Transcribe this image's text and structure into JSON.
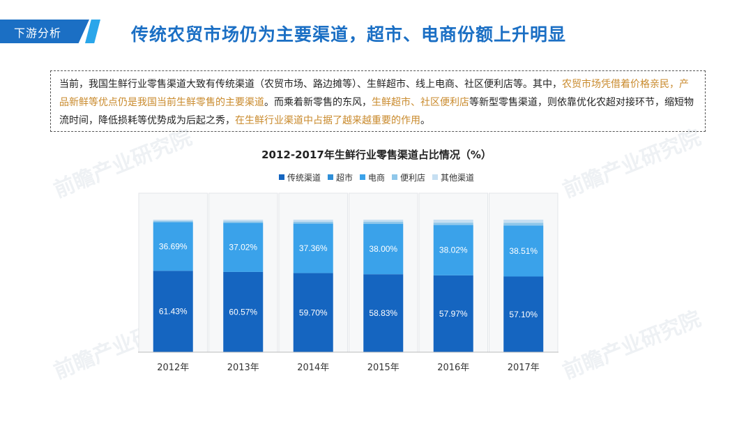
{
  "header": {
    "tag": "下游分析",
    "title": "传统农贸市场仍为主要渠道，超市、电商份额上升明显"
  },
  "description": {
    "p1": "当前，我国生鲜行业零售渠道大致有传统渠道（农贸市场、路边摊等）、生鲜超市、线上电商、社区便利店等。其中，",
    "h1": "农贸市场凭借着价格亲民，产品新鲜等优点仍是我国当前生鲜零售的主要渠道",
    "p2": "。而乘着新零售的东风，",
    "h2": "生鲜超市、社区便利店",
    "p3": "等新型零售渠道，则依靠优化农超对接环节，缩短物流时间，降低损耗等优势成为后起之秀，",
    "h3": "在生鲜行业渠道中占据了越来越重要的作用",
    "p4": "。"
  },
  "watermark": "前瞻产业研究院",
  "colors": {
    "traditional": "#1565c0",
    "supermarket": "#2f8fd8",
    "ecommerce": "#3aa2ea",
    "convenience": "#8fc7ea",
    "other": "#c6dff2",
    "highlight": "#c98a2c",
    "brand": "#1b6fc4"
  },
  "chart_data": {
    "type": "bar",
    "stacked": true,
    "title": "2012-2017年生鲜行业零售渠道占比情况（%）",
    "categories": [
      "2012年",
      "2013年",
      "2014年",
      "2015年",
      "2016年",
      "2017年"
    ],
    "series": [
      {
        "name": "传统渠道",
        "values": [
          61.43,
          60.57,
          59.7,
          58.83,
          57.97,
          57.1
        ]
      },
      {
        "name": "超市",
        "values": [
          0,
          0,
          0,
          0,
          0,
          0
        ]
      },
      {
        "name": "电商",
        "values": [
          36.69,
          37.02,
          37.36,
          38.0,
          38.02,
          38.51
        ]
      },
      {
        "name": "便利店",
        "values": [
          1.0,
          1.2,
          1.4,
          1.6,
          1.8,
          2.0
        ]
      },
      {
        "name": "其他渠道",
        "values": [
          0.88,
          1.21,
          1.54,
          1.57,
          2.21,
          2.39
        ]
      }
    ],
    "data_labels": {
      "传统渠道": [
        "61.43%",
        "60.57%",
        "59.70%",
        "58.83%",
        "57.97%",
        "57.10%"
      ],
      "电商": [
        "36.69%",
        "37.02%",
        "37.36%",
        "38.00%",
        "38.02%",
        "38.51%"
      ]
    },
    "ylim": [
      0,
      100
    ],
    "legend_position": "top"
  }
}
